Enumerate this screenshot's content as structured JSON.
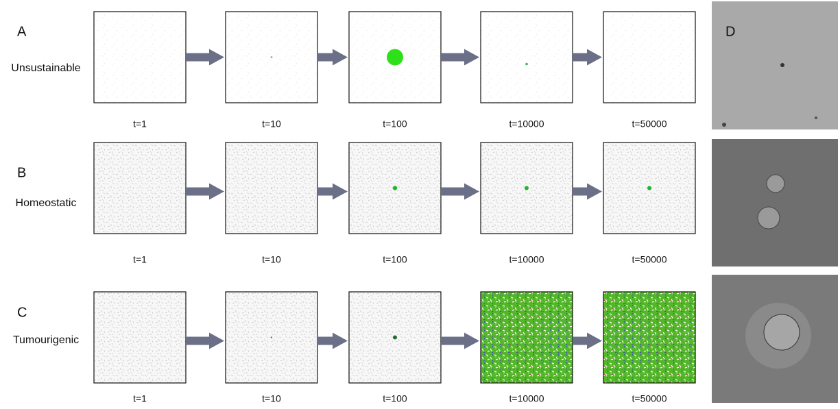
{
  "rows": [
    {
      "letter": "A",
      "label": "Unsustainable",
      "times": [
        "t=1",
        "t=10",
        "t=100",
        "t=10000",
        "t=50000"
      ]
    },
    {
      "letter": "B",
      "label": "Homeostatic",
      "times": [
        "t=1",
        "t=10",
        "t=100",
        "t=10000",
        "t=50000"
      ]
    },
    {
      "letter": "C",
      "label": "Tumourigenic",
      "times": [
        "t=1",
        "t=10",
        "t=100",
        "t=10000",
        "t=50000"
      ]
    }
  ],
  "side_label": "D"
}
